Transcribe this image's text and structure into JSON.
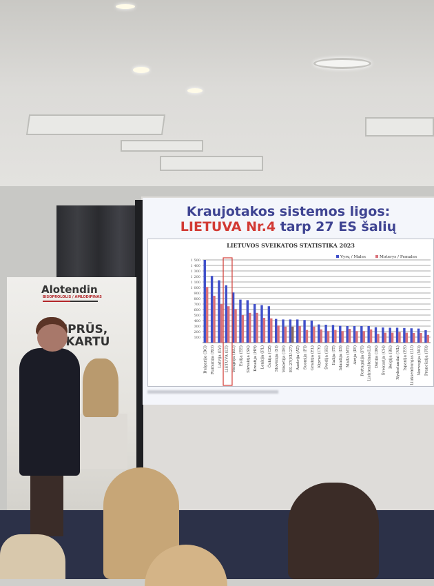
{
  "slide": {
    "title_line1": "Kraujotakos sistemos ligos:",
    "title_line2_highlight": "LIETUVA Nr.4",
    "title_line2_rest": " tarp 27 ES šalių"
  },
  "banner": {
    "brand": "Alotendin",
    "brand_sub": "BISOPROLOLIS / AMLODIPINAS",
    "slogan_line1": "STIPRŪS,",
    "slogan_line2": "AI KARTU"
  },
  "colors": {
    "males": "#3f4fc9",
    "females": "#d9717a",
    "highlight_box": "#d23a34",
    "title": "#3f4492",
    "title_highlight": "#d23a34"
  },
  "chart_data": {
    "type": "bar",
    "title": "LIETUVOS SVEIKATOS STATISTIKA 2023",
    "ylim": [
      0,
      1500
    ],
    "yticks": [
      100,
      200,
      300,
      400,
      500,
      600,
      700,
      800,
      900,
      1000,
      1100,
      1200,
      1300,
      1400,
      1500
    ],
    "ytick_labels": [
      "100",
      "200",
      "300",
      "400",
      "500",
      "600",
      "700",
      "800",
      "900",
      "1 000",
      "1 100",
      "1 200",
      "1 300",
      "1 400",
      "1 500"
    ],
    "grid": true,
    "legend": "top-right",
    "highlighted_category": "LIETUVA (LT)",
    "categories": [
      "Bulgarija (BG)",
      "Rumunija (RO)",
      "Latvija (LV)",
      "LIETUVA (LT)",
      "Vengrija (HU)",
      "Estija (EE)",
      "Slovakija (SK)",
      "Kroatija (HR)",
      "Lenkija (PL)",
      "Čekija (CZ)",
      "Slovėnija (SI)",
      "Vokietija (DE)",
      "ES-27(EU-27)",
      "Austrija (AT)",
      "Suomija (FI)",
      "Graikija (EL)",
      "Kipras (CY)",
      "Švedija (SE)",
      "Italija (IT)",
      "Islandija (IS)",
      "Malta (MT)",
      "Airija (IE)",
      "Portugalija (PT)",
      "Lichtenšteinas(LI)",
      "Danija (DK)",
      "Šveicarija (CH)",
      "Belgija (BE)",
      "Nyderlandai (NL)",
      "Ispanija (ES)",
      "Liuksemburgas (LU)",
      "Norvegija (NO)",
      "Prancūzija (FR)"
    ],
    "series": [
      {
        "name": "Vyrų / Males",
        "values": [
          1500,
          1210,
          1130,
          1040,
          910,
          780,
          770,
          700,
          680,
          660,
          430,
          420,
          420,
          420,
          410,
          400,
          330,
          325,
          320,
          305,
          300,
          300,
          300,
          300,
          280,
          275,
          270,
          270,
          265,
          260,
          255,
          225
        ]
      },
      {
        "name": "Moterys / Females",
        "values": [
          1010,
          850,
          700,
          660,
          610,
          500,
          540,
          540,
          450,
          440,
          310,
          290,
          290,
          300,
          230,
          290,
          240,
          210,
          230,
          210,
          250,
          210,
          210,
          240,
          160,
          180,
          180,
          190,
          180,
          175,
          175,
          140
        ]
      }
    ]
  }
}
